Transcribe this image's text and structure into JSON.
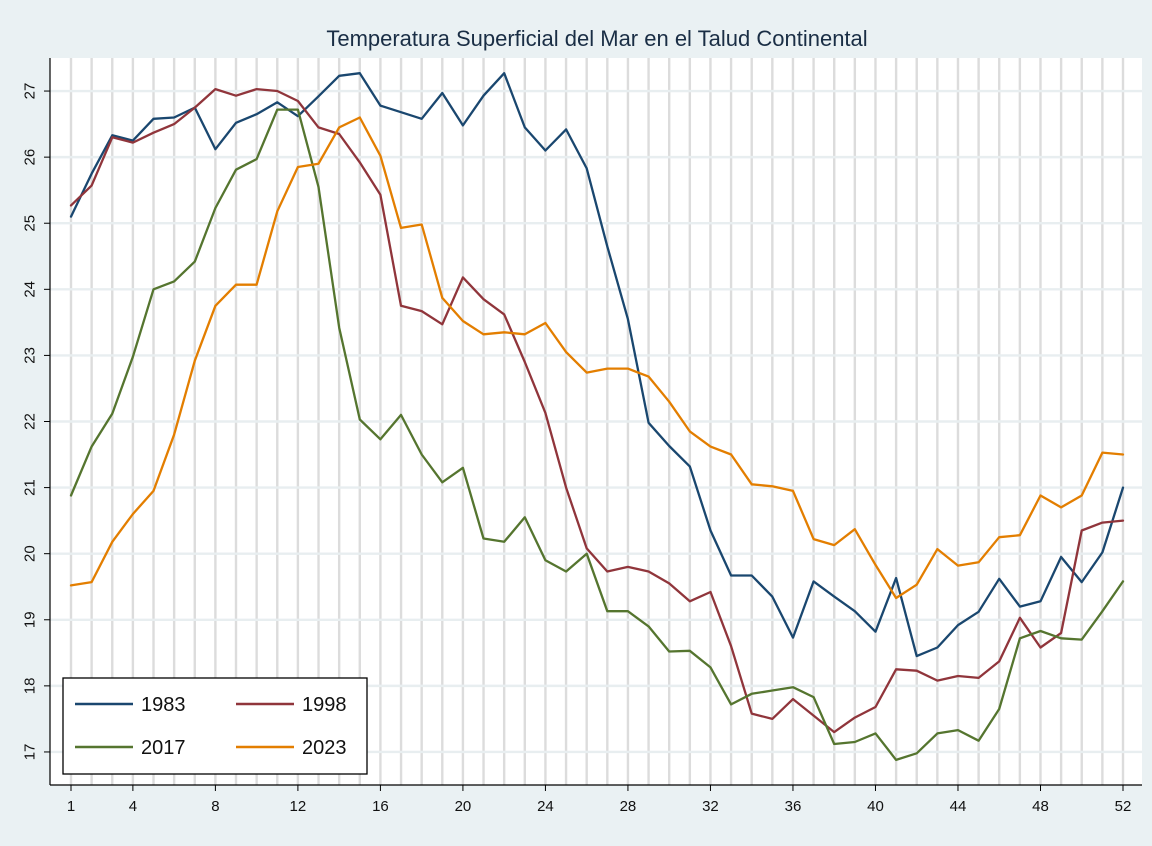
{
  "chart_data": {
    "type": "line",
    "title": "Temperatura Superficial del Mar en el Talud Continental",
    "xlabel": "",
    "ylabel": "",
    "xlim": [
      1,
      52
    ],
    "ylim": [
      16.5,
      27.5
    ],
    "x_ticks": [
      "1",
      "4",
      "8",
      "12",
      "16",
      "20",
      "24",
      "28",
      "32",
      "36",
      "40",
      "44",
      "48",
      "52"
    ],
    "y_ticks": [
      "17",
      "18",
      "19",
      "20",
      "21",
      "22",
      "23",
      "24",
      "25",
      "26",
      "27"
    ],
    "grid": true,
    "legend_position": "bottom-left",
    "x": [
      1,
      2,
      3,
      4,
      5,
      6,
      7,
      8,
      9,
      10,
      11,
      12,
      13,
      14,
      15,
      16,
      17,
      18,
      19,
      20,
      21,
      22,
      23,
      24,
      25,
      26,
      27,
      28,
      29,
      30,
      31,
      32,
      33,
      34,
      35,
      36,
      37,
      38,
      39,
      40,
      41,
      42,
      43,
      44,
      45,
      46,
      47,
      48,
      49,
      50,
      51,
      52
    ],
    "series": [
      {
        "name": "1983",
        "color": "#1a476f",
        "values": [
          25.1,
          25.75,
          26.33,
          26.25,
          26.58,
          26.6,
          26.75,
          26.12,
          26.52,
          26.65,
          26.83,
          26.62,
          26.92,
          27.23,
          27.27,
          26.78,
          26.68,
          26.58,
          26.97,
          26.48,
          26.93,
          27.27,
          26.45,
          26.1,
          26.42,
          25.83,
          24.65,
          23.55,
          21.98,
          21.63,
          21.32,
          20.35,
          19.67,
          19.67,
          19.35,
          18.73,
          19.58,
          19.35,
          19.13,
          18.82,
          19.63,
          18.45,
          18.58,
          18.92,
          19.12,
          19.62,
          19.2,
          19.28,
          19.95,
          19.57,
          20.02,
          21.0
        ]
      },
      {
        "name": "1998",
        "color": "#90353b",
        "values": [
          25.27,
          25.57,
          26.3,
          26.22,
          26.37,
          26.5,
          26.75,
          27.03,
          26.93,
          27.03,
          27.0,
          26.85,
          26.45,
          26.35,
          25.92,
          25.43,
          23.75,
          23.67,
          23.47,
          24.18,
          23.85,
          23.62,
          22.9,
          22.13,
          21.0,
          20.08,
          19.73,
          19.8,
          19.73,
          19.55,
          19.28,
          19.42,
          18.6,
          17.58,
          17.5,
          17.8,
          17.55,
          17.3,
          17.52,
          17.68,
          18.25,
          18.23,
          18.08,
          18.15,
          18.12,
          18.37,
          19.03,
          18.58,
          18.8,
          20.35,
          20.47,
          20.5
        ]
      },
      {
        "name": "2017",
        "color": "#55752f",
        "values": [
          20.88,
          21.62,
          22.12,
          22.98,
          24.0,
          24.12,
          24.42,
          25.23,
          25.81,
          25.97,
          26.72,
          26.72,
          25.55,
          23.42,
          22.03,
          21.73,
          22.1,
          21.5,
          21.08,
          21.3,
          20.23,
          20.18,
          20.55,
          19.9,
          19.73,
          20.0,
          19.13,
          19.13,
          18.9,
          18.52,
          18.53,
          18.28,
          17.72,
          17.88,
          17.93,
          17.98,
          17.83,
          17.12,
          17.15,
          17.28,
          16.88,
          16.98,
          17.28,
          17.33,
          17.17,
          17.65,
          18.72,
          18.83,
          18.72,
          18.7,
          19.13,
          19.58
        ]
      },
      {
        "name": "2023",
        "color": "#e37e00",
        "values": [
          19.52,
          19.57,
          20.18,
          20.6,
          20.95,
          21.8,
          22.92,
          23.75,
          24.07,
          24.07,
          25.18,
          25.85,
          25.9,
          26.45,
          26.6,
          26.02,
          24.93,
          24.98,
          23.87,
          23.52,
          23.32,
          23.35,
          23.32,
          23.49,
          23.05,
          22.74,
          22.8,
          22.8,
          22.68,
          22.3,
          21.85,
          21.62,
          21.5,
          21.05,
          21.02,
          20.95,
          20.22,
          20.13,
          20.37,
          19.83,
          19.33,
          19.53,
          20.07,
          19.82,
          19.87,
          20.25,
          20.28,
          20.88,
          20.7,
          20.88,
          21.53,
          21.5
        ]
      }
    ]
  }
}
